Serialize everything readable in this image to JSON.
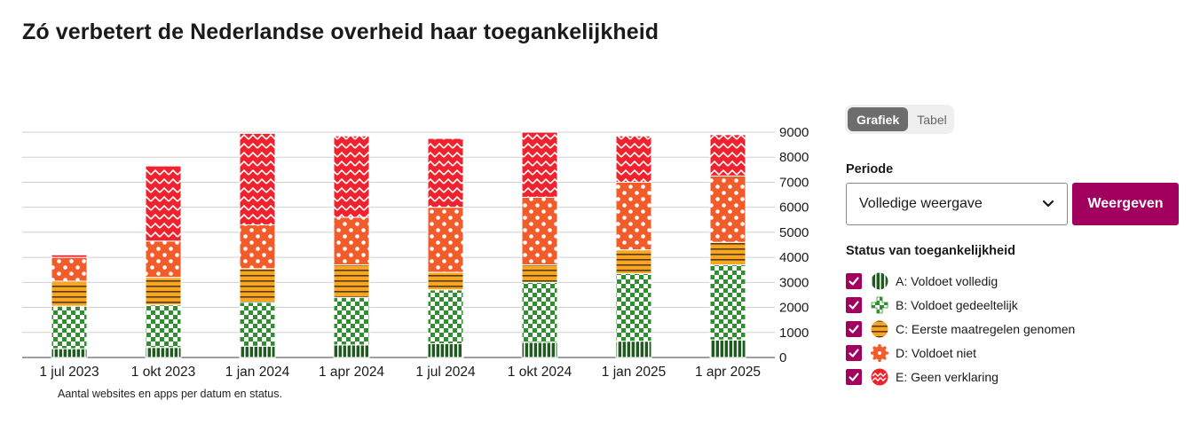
{
  "page": {
    "title": "Zó verbetert de Nederlandse overheid haar toegankelijkheid",
    "caption": "Aantal websites en apps per datum en status."
  },
  "controls": {
    "tabs": [
      {
        "label": "Grafiek",
        "active": true
      },
      {
        "label": "Tabel",
        "active": false
      }
    ],
    "period_label": "Periode",
    "period_value": "Volledige weergave",
    "apply_label": "Weergeven",
    "status_label": "Status van toegankelijkheid"
  },
  "legend": [
    {
      "label": "A: Voldoet volledig",
      "checked": true,
      "icon": "stripes-icon"
    },
    {
      "label": "B: Voldoet gedeeltelijk",
      "checked": true,
      "icon": "checker-icon"
    },
    {
      "label": "C: Eerste maatregelen genomen",
      "checked": true,
      "icon": "horizontal-lines-icon"
    },
    {
      "label": "D: Voldoet niet",
      "checked": true,
      "icon": "dots-icon"
    },
    {
      "label": "E: Geen verklaring",
      "checked": true,
      "icon": "zigzag-icon"
    }
  ],
  "colors": {
    "A": "#1e5c1e",
    "B": "#2f8f2f",
    "C": "#f6a623",
    "D": "#f25c2a",
    "E": "#f0222e",
    "accent": "#a1005e"
  },
  "chart_data": {
    "type": "bar",
    "stacked": true,
    "categories": [
      "1 jul 2023",
      "1 okt 2023",
      "1 jan 2024",
      "1 apr 2024",
      "1 jul 2024",
      "1 okt 2024",
      "1 jan 2025",
      "1 apr 2025"
    ],
    "series": [
      {
        "name": "A: Voldoet volledig",
        "key": "A",
        "values": [
          350,
          400,
          450,
          500,
          550,
          600,
          650,
          700
        ]
      },
      {
        "name": "B: Voldoet gedeeltelijk",
        "key": "B",
        "values": [
          1700,
          1700,
          1750,
          1900,
          2150,
          2400,
          2700,
          3000
        ]
      },
      {
        "name": "C: Eerste maatregelen genomen",
        "key": "C",
        "values": [
          1000,
          1100,
          1350,
          1300,
          700,
          700,
          950,
          900
        ]
      },
      {
        "name": "D: Voldoet niet",
        "key": "D",
        "values": [
          950,
          1450,
          1750,
          1900,
          2600,
          2700,
          2700,
          2650
        ]
      },
      {
        "name": "E: Geen verklaring",
        "key": "E",
        "values": [
          100,
          3000,
          3650,
          3250,
          2750,
          2600,
          1850,
          1650
        ]
      }
    ],
    "y_ticks": [
      0,
      1000,
      2000,
      3000,
      4000,
      5000,
      6000,
      7000,
      8000,
      9000
    ],
    "ylim": [
      0,
      9000
    ],
    "y_axis_side": "right",
    "grid": true
  }
}
